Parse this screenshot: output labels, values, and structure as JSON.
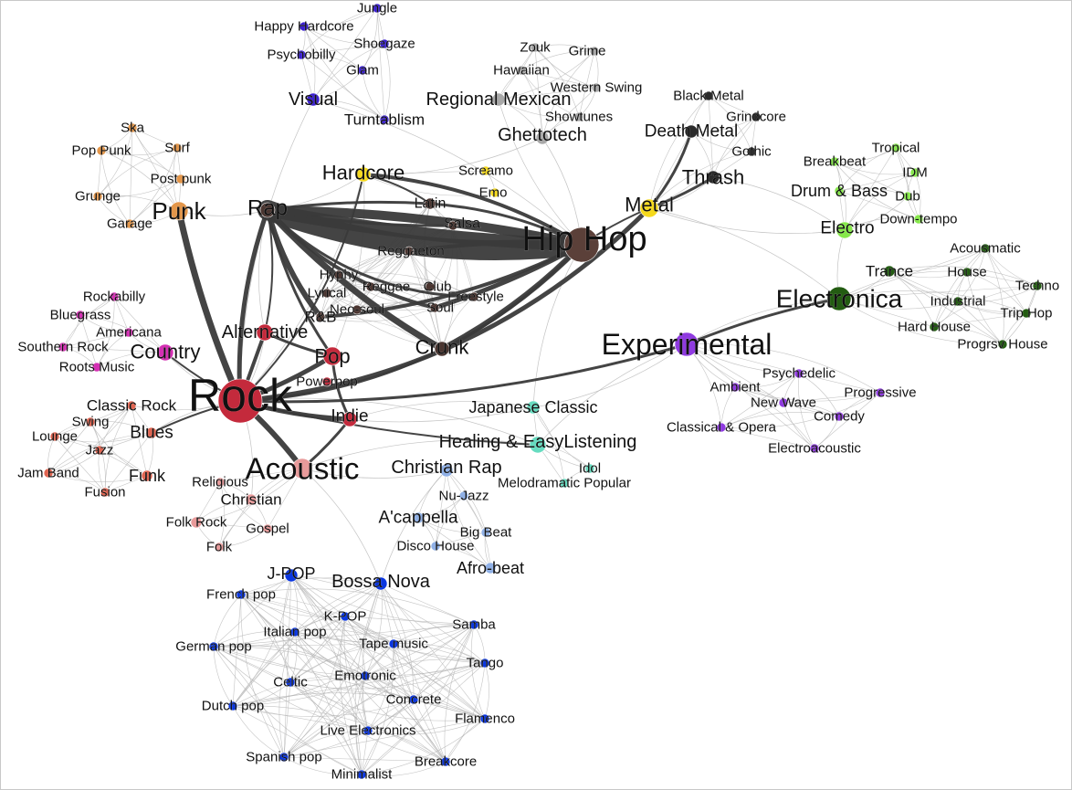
{
  "colors": {
    "rock": "#c42a3c",
    "punk": "#e3964a",
    "hiphop": "#5b4039",
    "hiphopSub": "#4a3530",
    "hardcore": "#f5d91c",
    "visual": "#3a1fd1",
    "regional": "#a8a8a8",
    "metal": "#2b2b2b",
    "electro": "#86e84a",
    "electronica": "#235c12",
    "experimental": "#8f3ae0",
    "country": "#d42fb3",
    "blues": "#e06450",
    "acoustic": "#e89a9a",
    "japanese": "#66dcc0",
    "christian": "#8fb0e6",
    "world": "#0a36e0",
    "edge": "#b5b5b5",
    "edgeDark": "#3a3a3a"
  },
  "groups": {
    "rock": "Rock",
    "hip_hop": [
      "Hip Hop",
      "Rap",
      "Latin",
      "Salsa",
      "Reggaeton",
      "Hyphy",
      "Reggae",
      "Club",
      "Lyrical",
      "Neo-soul",
      "Soul",
      "Freestyle",
      "R&B",
      "Crunk"
    ],
    "punk": [
      "Punk",
      "Ska",
      "Pop Punk",
      "Surf",
      "Post punk",
      "Grunge",
      "Garage"
    ],
    "visual": [
      "Visual",
      "Jungle",
      "Happy Hardcore",
      "Shoegaze",
      "Psychobilly",
      "Glam",
      "Turntablism"
    ],
    "hardcore": [
      "Hardcore",
      "Screamo",
      "Emo"
    ],
    "regional": [
      "Regional Mexican",
      "Zouk",
      "Grime",
      "Hawaiian",
      "Western Swing",
      "Showtunes",
      "Ghettotech"
    ],
    "metal": [
      "Metal",
      "Black Metal",
      "Grindcore",
      "Death Metal",
      "Gothic",
      "Thrash"
    ],
    "electro": [
      "Electro",
      "Tropical",
      "Breakbeat",
      "IDM",
      "Drum & Bass",
      "Dub",
      "Down-tempo"
    ],
    "electronica": [
      "Electronica",
      "Acousmatic",
      "Trance",
      "House",
      "Techno",
      "Industrial",
      "Trip Hop",
      "Hard House",
      "Progrsv House"
    ],
    "experimental": [
      "Experimental",
      "Psychedelic",
      "Ambient",
      "Progressive",
      "New Wave",
      "Comedy",
      "Classical & Opera",
      "Electroacoustic"
    ],
    "pop": [
      "Alternative",
      "Pop",
      "Powerpop",
      "Indie"
    ],
    "country": [
      "Country",
      "Rockabilly",
      "Bluegrass",
      "Americana",
      "Southern Rock",
      "Roots Music"
    ],
    "blues": [
      "Blues",
      "Classic Rock",
      "Swing",
      "Lounge",
      "Jazz",
      "Jam Band",
      "Funk",
      "Fusion"
    ],
    "acoustic": [
      "Acoustic",
      "Religious",
      "Christian",
      "Folk Rock",
      "Gospel",
      "Folk"
    ],
    "japanese": [
      "Japanese Classic",
      "Healing & EasyListening",
      "Idol",
      "Melodramatic Popular"
    ],
    "christian": [
      "Christian Rap",
      "Nu-Jazz",
      "A'cappella",
      "Big Beat",
      "Disco House",
      "Afro-beat"
    ],
    "world": [
      "Bossa Nova",
      "J-POP",
      "French pop",
      "K-POP",
      "Samba",
      "Italian pop",
      "German pop",
      "Tape music",
      "Tango",
      "Emotronic",
      "Celtic",
      "Dutch pop",
      "Concrete",
      "Flamenco",
      "Live Electronics",
      "Spanish pop",
      "Breakcore",
      "Minimalist"
    ]
  }
}
